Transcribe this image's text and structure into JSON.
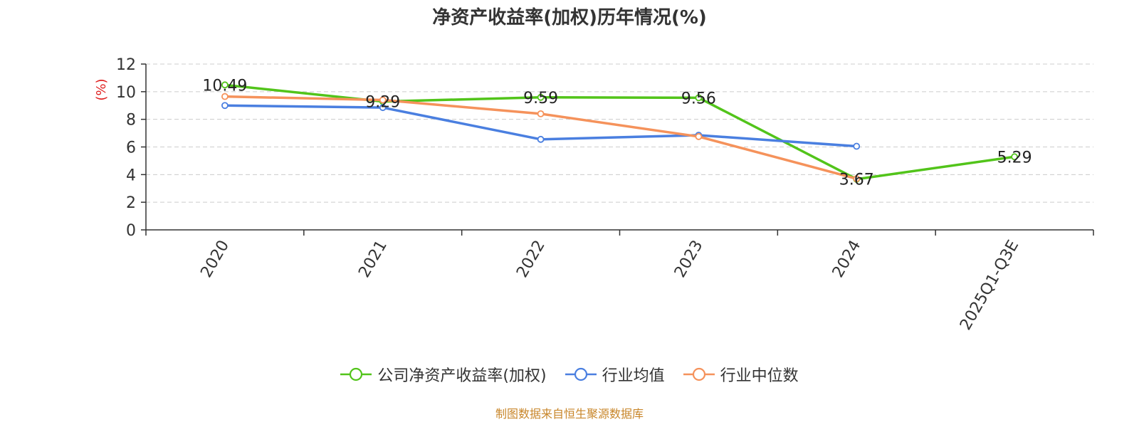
{
  "chart_data": {
    "type": "line",
    "title": "净资产收益率(加权)历年情况(%)",
    "ylabel": "(%)",
    "ylim": [
      0,
      12
    ],
    "yticks": [
      0,
      2,
      4,
      6,
      8,
      10,
      12
    ],
    "grid": true,
    "legend_position": "bottom",
    "categories": [
      "2020",
      "2021",
      "2022",
      "2023",
      "2024",
      "2025Q1-Q3E"
    ],
    "series": [
      {
        "name": "公司净资产收益率(加权)",
        "color": "#52c41a",
        "values": [
          10.49,
          9.29,
          9.59,
          9.56,
          3.67,
          5.29
        ],
        "labels": [
          "10.49",
          "9.29",
          "9.59",
          "9.56",
          "3.67",
          "5.29"
        ]
      },
      {
        "name": "行业均值",
        "color": "#4a7fe0",
        "values": [
          9.0,
          8.85,
          6.55,
          6.85,
          6.05,
          null
        ],
        "labels": null
      },
      {
        "name": "行业中位数",
        "color": "#f5925b",
        "values": [
          9.65,
          9.4,
          8.4,
          6.75,
          3.7,
          null
        ],
        "labels": null
      }
    ]
  },
  "footer": {
    "source": "制图数据来自恒生聚源数据库"
  }
}
